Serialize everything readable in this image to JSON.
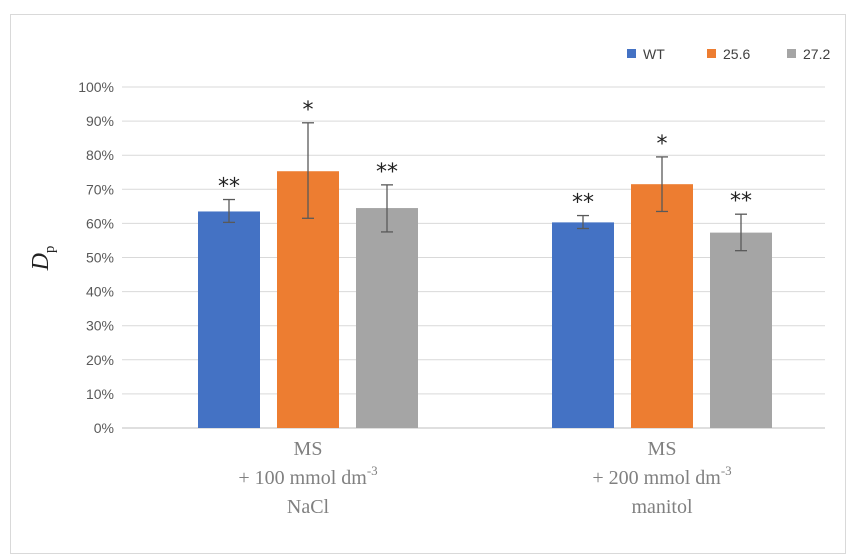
{
  "chart_data": {
    "type": "bar",
    "ylabel": {
      "main": "D",
      "sub": "p"
    },
    "ylim": [
      0,
      100
    ],
    "y_ticks": [
      "0%",
      "10%",
      "20%",
      "30%",
      "40%",
      "50%",
      "60%",
      "70%",
      "80%",
      "90%",
      "100%"
    ],
    "grid": true,
    "legend_position": "top-right",
    "categories": [
      {
        "lines": [
          "MS",
          "+ 100 mmol dm",
          "NaCl"
        ],
        "sup": "-3"
      },
      {
        "lines": [
          "MS",
          "+ 200 mmol dm",
          "manitol"
        ],
        "sup": "-3"
      }
    ],
    "series": [
      {
        "name": "WT",
        "color": "#4472c4",
        "values": [
          63.5,
          60.3
        ],
        "err_low": [
          60.3,
          58.5
        ],
        "err_high": [
          67.0,
          62.3
        ],
        "annotations": [
          "**",
          "**"
        ]
      },
      {
        "name": "25.6",
        "color": "#ed7d31",
        "values": [
          75.3,
          71.5
        ],
        "err_low": [
          61.5,
          63.5
        ],
        "err_high": [
          89.5,
          79.5
        ],
        "annotations": [
          "*",
          "*"
        ]
      },
      {
        "name": "27.2",
        "color": "#a5a5a5",
        "values": [
          64.5,
          57.3
        ],
        "err_low": [
          57.5,
          52.0
        ],
        "err_high": [
          71.3,
          62.7
        ],
        "annotations": [
          "**",
          "**"
        ]
      }
    ]
  }
}
